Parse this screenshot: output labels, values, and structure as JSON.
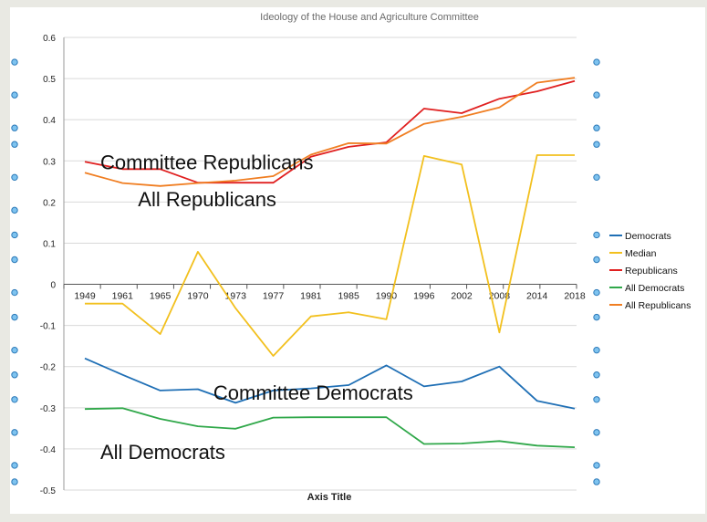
{
  "chart_data": {
    "type": "line",
    "title": "Ideology of the House and  Agriculture Committee",
    "xlabel": "Axis Title",
    "ylabel": "",
    "ylim": [
      -0.5,
      0.6
    ],
    "yticks": [
      -0.5,
      -0.4,
      -0.3,
      -0.2,
      -0.1,
      0,
      0.1,
      0.2,
      0.3,
      0.4,
      0.5,
      0.6
    ],
    "ytick_labels": [
      "-0.5",
      "-0.4",
      "-0.3",
      "-0.2",
      "-0.1",
      "0",
      "0.1",
      "0.2",
      "0.3",
      "0.4",
      "0.5",
      "0.6"
    ],
    "categories": [
      "1949",
      "1961",
      "1965",
      "1970",
      "1973",
      "1977",
      "1981",
      "1985",
      "1990",
      "1996",
      "2002",
      "2008",
      "2014",
      "2018"
    ],
    "grid": true,
    "legend_position": "right",
    "series": [
      {
        "name": "Democrats",
        "color": "#1f6fb5",
        "values": [
          -0.18,
          -0.22,
          -0.258,
          -0.255,
          -0.288,
          -0.258,
          -0.253,
          -0.245,
          -0.197,
          -0.248,
          -0.236,
          -0.2,
          -0.283,
          -0.302
        ]
      },
      {
        "name": "Median",
        "color": "#f2c01e",
        "values": [
          -0.047,
          -0.047,
          -0.121,
          0.079,
          -0.058,
          -0.174,
          -0.078,
          -0.068,
          -0.085,
          0.312,
          0.291,
          -0.117,
          0.314,
          0.314
        ]
      },
      {
        "name": "Republicans",
        "color": "#e02020",
        "values": [
          0.298,
          0.28,
          0.28,
          0.247,
          0.247,
          0.247,
          0.31,
          0.334,
          0.345,
          0.427,
          0.416,
          0.451,
          0.469,
          0.494
        ]
      },
      {
        "name": "All Democrats",
        "color": "#30a84a",
        "values": [
          -0.303,
          -0.301,
          -0.327,
          -0.345,
          -0.351,
          -0.324,
          -0.323,
          -0.323,
          -0.323,
          -0.388,
          -0.387,
          -0.381,
          -0.392,
          -0.396
        ]
      },
      {
        "name": "All Republicans",
        "color": "#f07e22",
        "values": [
          0.271,
          0.246,
          0.239,
          0.246,
          0.252,
          0.263,
          0.315,
          0.343,
          0.342,
          0.39,
          0.407,
          0.43,
          0.49,
          0.502
        ]
      }
    ],
    "annotations": [
      {
        "text": "Committee Republicans",
        "x": "1949",
        "y": 0.3
      },
      {
        "text": "All Republicans",
        "x": "1961",
        "y": 0.21
      },
      {
        "text": "Committee Democrats",
        "x": "1970",
        "y": -0.26
      },
      {
        "text": "All Democrats",
        "x": "1949",
        "y": -0.405
      }
    ]
  }
}
